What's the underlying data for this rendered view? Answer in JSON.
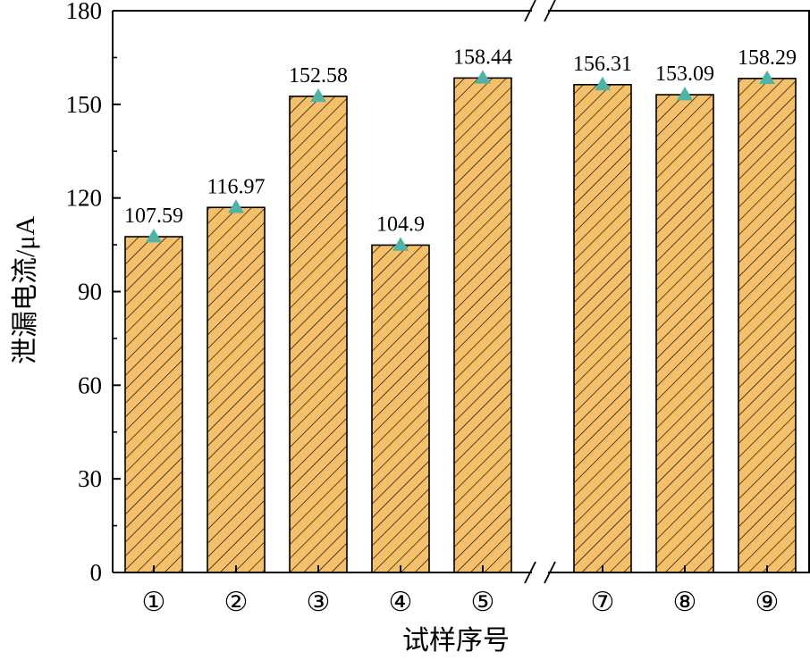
{
  "chart_data": {
    "type": "bar",
    "xlabel": "试样序号",
    "ylabel": "泄漏电流/μA",
    "ylim": [
      0,
      180
    ],
    "yticks": [
      0,
      30,
      60,
      90,
      120,
      150,
      180
    ],
    "categories": [
      "①",
      "②",
      "③",
      "④",
      "⑤",
      "⑦",
      "⑧",
      "⑨"
    ],
    "values": [
      107.59,
      116.97,
      152.58,
      104.9,
      158.44,
      156.31,
      153.09,
      158.29
    ],
    "value_labels": [
      "107.59",
      "116.97",
      "152.58",
      "104.9",
      "158.44",
      "156.31",
      "153.09",
      "158.29"
    ],
    "axis_break_after_category": "⑤",
    "bar_fill": "#F5C06A",
    "bar_hatch": "#000000",
    "marker": "triangle",
    "marker_color": "#4FB3A6",
    "grid": false,
    "legend": "none"
  }
}
